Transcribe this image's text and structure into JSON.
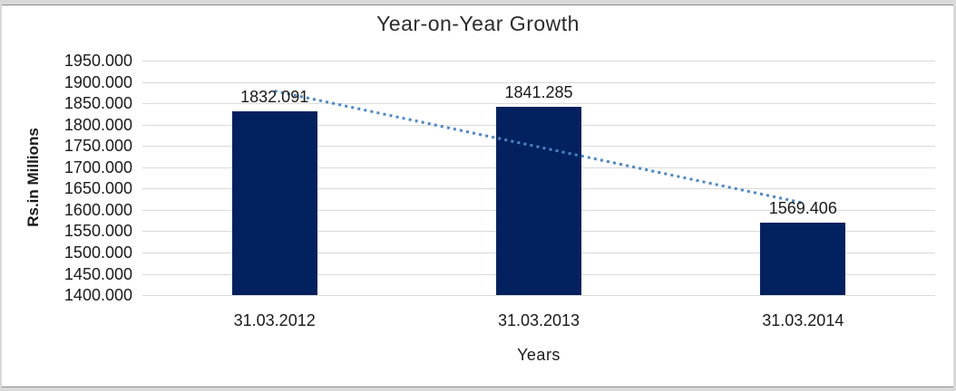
{
  "chart_data": {
    "type": "bar",
    "title": "Year-on-Year Growth",
    "xlabel": "Years",
    "ylabel": "Rs.in Millions",
    "categories": [
      "31.03.2012",
      "31.03.2013",
      "31.03.2014"
    ],
    "values": [
      1832.091,
      1841.285,
      1569.406
    ],
    "data_labels": [
      "1832.091",
      "1841.285",
      "1569.406"
    ],
    "ylim": [
      1400,
      1950
    ],
    "ytick_step": 50,
    "ytick_labels": [
      "1950.000",
      "1900.000",
      "1850.000",
      "1800.000",
      "1750.000",
      "1700.000",
      "1650.000",
      "1600.000",
      "1550.000",
      "1500.000",
      "1450.000",
      "1400.000"
    ],
    "grid": true,
    "legend": false,
    "bar_color": "#02215E",
    "gridline_color": "#D9D9D9",
    "text_color": "#1A1A1A",
    "frame_color": "#D9D9D9",
    "trendline": {
      "type": "linear",
      "style": "dotted",
      "color": "#4A86C8"
    }
  }
}
